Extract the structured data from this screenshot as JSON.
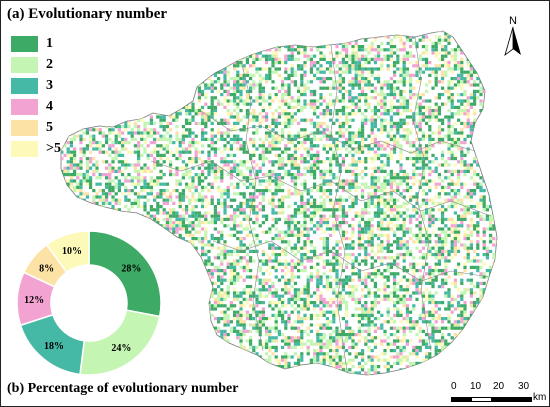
{
  "titles": {
    "a": "(a) Evolutionary number",
    "b": "(b) Percentage of evolutionary number"
  },
  "legend": [
    {
      "label": "1",
      "color": "#3daa66"
    },
    {
      "label": "2",
      "color": "#c4f5b2"
    },
    {
      "label": "3",
      "color": "#45b8a6"
    },
    {
      "label": "4",
      "color": "#f2a3d2"
    },
    {
      "label": "5",
      "color": "#fde2a6"
    },
    {
      "label": ">5",
      "color": "#fdf9b8"
    }
  ],
  "north_arrow": {
    "label": "N"
  },
  "scale_bar": {
    "labels": [
      "0",
      "10",
      "20",
      "30"
    ],
    "unit": "km"
  },
  "chart_data": {
    "type": "pie",
    "donut": true,
    "categories": [
      "1",
      "2",
      "3",
      "4",
      "5",
      ">5"
    ],
    "values": [
      28,
      24,
      18,
      12,
      8,
      10
    ],
    "labels": [
      "28%",
      "24%",
      "18%",
      "12%",
      "8%",
      "10%"
    ],
    "colors": [
      "#3daa66",
      "#c4f5b2",
      "#45b8a6",
      "#f2a3d2",
      "#fde2a6",
      "#fdf9b8"
    ]
  }
}
